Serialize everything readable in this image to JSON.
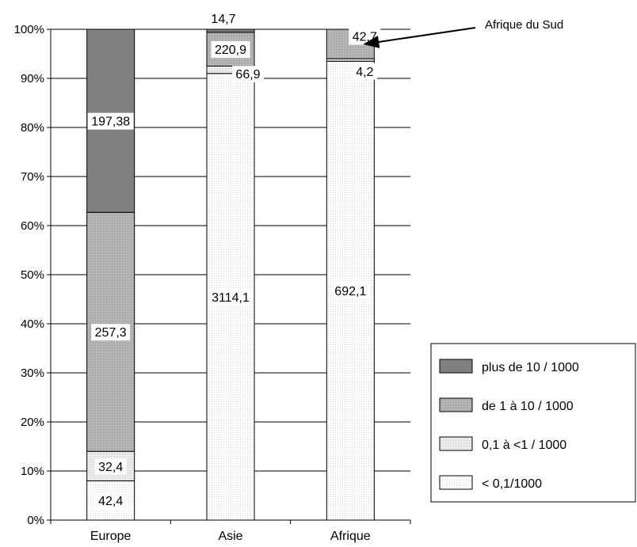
{
  "chart_data": {
    "type": "bar",
    "stacked": true,
    "normalized_percent": true,
    "categories": [
      "Europe",
      "Asie",
      "Afrique"
    ],
    "ylim": [
      0,
      100
    ],
    "yticks": [
      "0%",
      "10%",
      "20%",
      "30%",
      "40%",
      "50%",
      "60%",
      "70%",
      "80%",
      "90%",
      "100%"
    ],
    "grid": true,
    "legend_position": "right",
    "series": [
      {
        "name": "< 0,1/1000",
        "color": "#ffffff",
        "pattern": "dots-light",
        "labels": [
          "42,4",
          "3114,1",
          "692,1"
        ],
        "percent": [
          8,
          91,
          93.5
        ]
      },
      {
        "name": "0,1 à <1 / 1000",
        "color": "#ececec",
        "pattern": "dots",
        "labels": [
          "32,4",
          "66,9",
          "4,2"
        ],
        "percent": [
          6,
          1.5,
          0.5
        ]
      },
      {
        "name": "de 1 à 10 / 1000",
        "color": "#b8b8b8",
        "pattern": "dots-dark",
        "labels": [
          "257,3",
          "220,9",
          "42,7"
        ],
        "percent": [
          48.7,
          6.9,
          6
        ]
      },
      {
        "name": "plus de 10 / 1000",
        "color": "#808080",
        "pattern": "solid",
        "labels": [
          "197,38",
          "14,7",
          ""
        ],
        "percent": [
          37.3,
          0.6,
          0
        ]
      }
    ],
    "annotation": {
      "text": "Afrique du Sud",
      "target_category": "Afrique"
    }
  }
}
